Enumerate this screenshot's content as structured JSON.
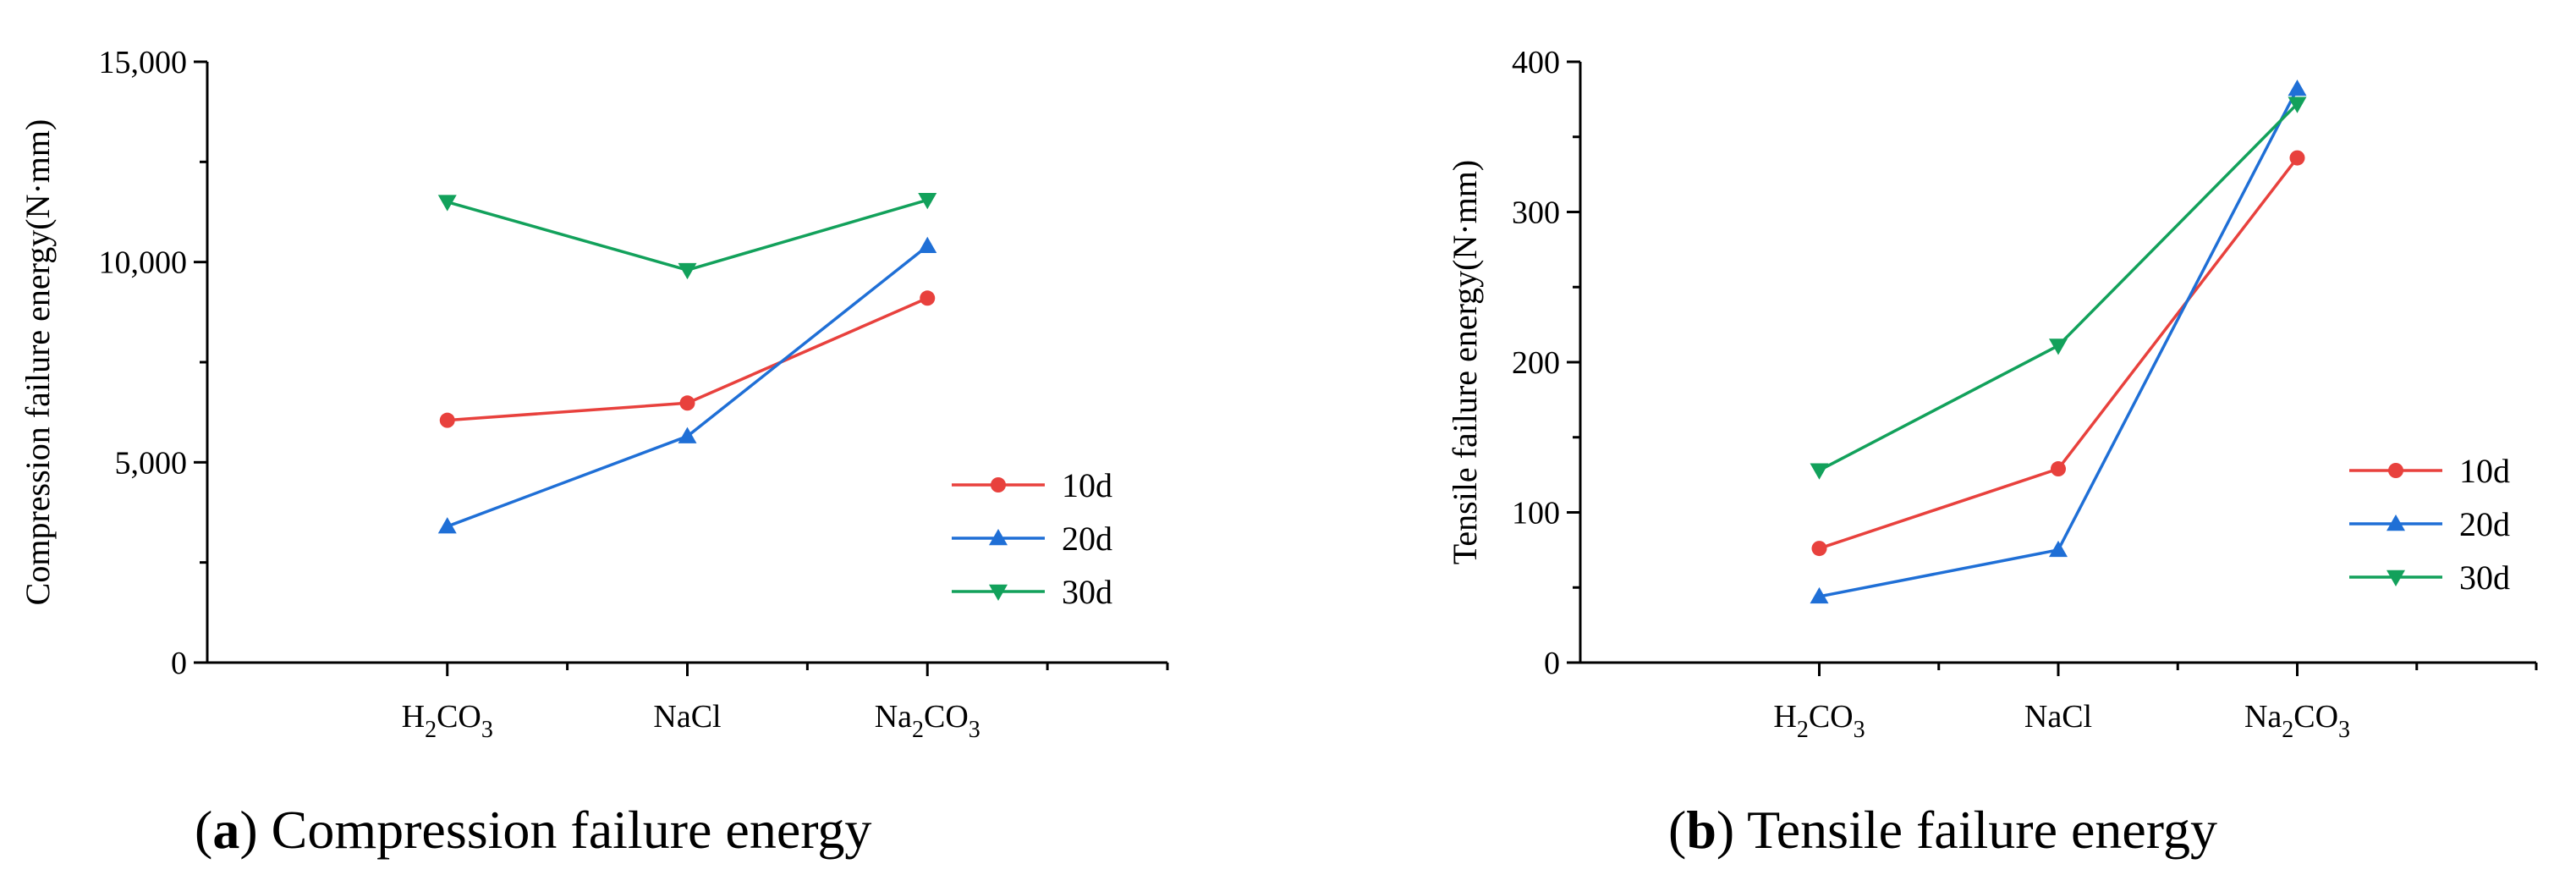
{
  "chart_data": [
    {
      "id": "a",
      "type": "line",
      "categories": [
        "H2CO3",
        "NaCl",
        "Na2CO3"
      ],
      "category_labels": [
        {
          "base": "H",
          "sub1": "2",
          "mid": "CO",
          "sub2": "3"
        },
        {
          "base": "NaCl",
          "sub1": "",
          "mid": "",
          "sub2": ""
        },
        {
          "base": "Na",
          "sub1": "2",
          "mid": "CO",
          "sub2": "3"
        }
      ],
      "series": [
        {
          "name": "10d",
          "color": "#e8413d",
          "marker": "circle",
          "values": [
            6050,
            6480,
            9100
          ]
        },
        {
          "name": "20d",
          "color": "#1f6fd6",
          "marker": "triangle-up",
          "values": [
            3400,
            5650,
            10400
          ]
        },
        {
          "name": "30d",
          "color": "#12a15b",
          "marker": "triangle-down",
          "values": [
            11500,
            9800,
            11550
          ]
        }
      ],
      "ylabel": "Compression failure energy(N·mm)",
      "xlabel": "",
      "ylim": [
        0,
        15000
      ],
      "yticks": [
        0,
        5000,
        10000,
        15000
      ],
      "ytick_labels": [
        "0",
        "5,000",
        "10,000",
        "15,000"
      ],
      "minor_ystep": 2500,
      "legend_position": "lower-right",
      "caption": {
        "letter": "a",
        "rest": " Compression failure energy"
      }
    },
    {
      "id": "b",
      "type": "line",
      "categories": [
        "H2CO3",
        "NaCl",
        "Na2CO3"
      ],
      "category_labels": [
        {
          "base": "H",
          "sub1": "2",
          "mid": "CO",
          "sub2": "3"
        },
        {
          "base": "NaCl",
          "sub1": "",
          "mid": "",
          "sub2": ""
        },
        {
          "base": "Na",
          "sub1": "2",
          "mid": "CO",
          "sub2": "3"
        }
      ],
      "series": [
        {
          "name": "10d",
          "color": "#e8413d",
          "marker": "circle",
          "values": [
            76,
            129,
            336
          ]
        },
        {
          "name": "20d",
          "color": "#1f6fd6",
          "marker": "triangle-up",
          "values": [
            44,
            75,
            382
          ]
        },
        {
          "name": "30d",
          "color": "#12a15b",
          "marker": "triangle-down",
          "values": [
            128,
            211,
            372
          ]
        }
      ],
      "ylabel": "Tensile failure energy(N·mm)",
      "xlabel": "",
      "ylim": [
        0,
        400
      ],
      "yticks": [
        0,
        100,
        200,
        300,
        400
      ],
      "ytick_labels": [
        "0",
        "100",
        "200",
        "300",
        "400"
      ],
      "minor_ystep": 50,
      "legend_position": "lower-right",
      "caption": {
        "letter": "b",
        "rest": " Tensile failure energy"
      }
    }
  ]
}
